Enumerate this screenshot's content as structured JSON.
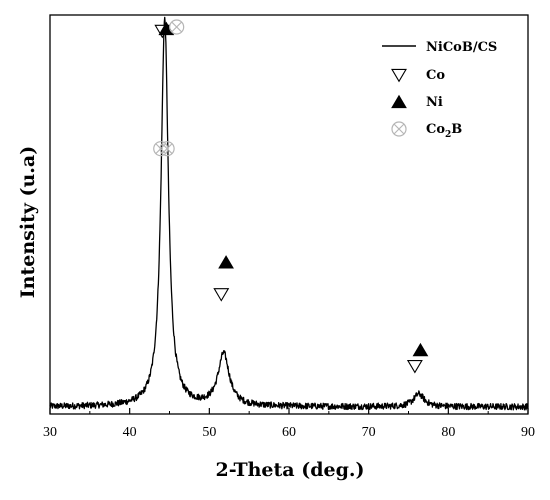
{
  "chart_data": {
    "type": "line",
    "title": "",
    "xlabel": "2-Theta (deg.)",
    "ylabel": "Intensity (u.a)",
    "xlim": [
      30,
      90
    ],
    "ylim": [
      0,
      100
    ],
    "x_ticks": [
      30,
      40,
      50,
      60,
      70,
      80,
      90
    ],
    "y_ticks_shown": false,
    "grid": false,
    "legend_position": "top-right",
    "series": [
      {
        "name": "NiCoB/CS",
        "color": "#000000",
        "peaks": [
          {
            "center": 44.4,
            "height": 97,
            "width": 0.55
          },
          {
            "center": 51.8,
            "height": 13,
            "width": 0.85
          },
          {
            "center": 76.3,
            "height": 3.2,
            "width": 0.8
          }
        ],
        "baseline": 1.8
      }
    ],
    "markers": [
      {
        "phase": "Co",
        "symbol": "triangle-down-open",
        "color": "#000000",
        "points": [
          [
            44.1,
            96
          ],
          [
            51.5,
            30
          ],
          [
            75.8,
            12
          ]
        ]
      },
      {
        "phase": "Ni",
        "symbol": "triangle-up-filled",
        "color": "#000000",
        "points": [
          [
            44.6,
            96.5
          ],
          [
            52.1,
            38
          ],
          [
            76.5,
            16
          ]
        ]
      },
      {
        "phase": "Co",
        "sub": "2",
        "suffix": "B",
        "symbol": "circle-x-open",
        "color": "#b5b5b5",
        "points": [
          [
            45.9,
            97
          ],
          [
            43.9,
            66.5
          ],
          [
            44.7,
            66.5
          ]
        ]
      }
    ]
  }
}
